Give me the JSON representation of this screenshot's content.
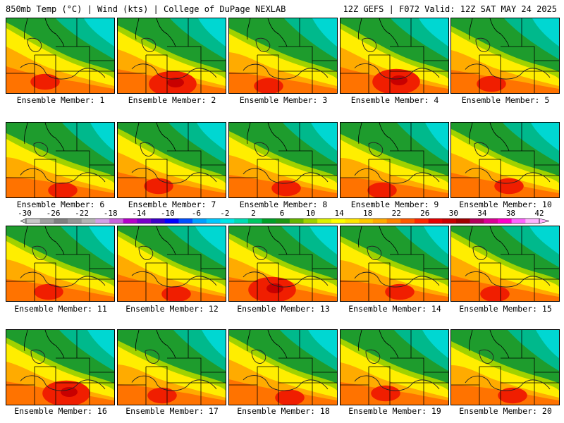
{
  "header": {
    "left": "850mb Temp (°C) | Wind (kts) | College of DuPage NEXLAB",
    "right": "12Z GEFS | F072 Valid: 12Z SAT MAY 24 2025"
  },
  "members": [
    {
      "label": "Ensemble Member: 1"
    },
    {
      "label": "Ensemble Member: 2"
    },
    {
      "label": "Ensemble Member: 3"
    },
    {
      "label": "Ensemble Member: 4"
    },
    {
      "label": "Ensemble Member: 5"
    },
    {
      "label": "Ensemble Member: 6"
    },
    {
      "label": "Ensemble Member: 7"
    },
    {
      "label": "Ensemble Member: 8"
    },
    {
      "label": "Ensemble Member: 9"
    },
    {
      "label": "Ensemble Member: 10"
    },
    {
      "label": "Ensemble Member: 11"
    },
    {
      "label": "Ensemble Member: 12"
    },
    {
      "label": "Ensemble Member: 13"
    },
    {
      "label": "Ensemble Member: 14"
    },
    {
      "label": "Ensemble Member: 15"
    },
    {
      "label": "Ensemble Member: 16"
    },
    {
      "label": "Ensemble Member: 17"
    },
    {
      "label": "Ensemble Member: 18"
    },
    {
      "label": "Ensemble Member: 19"
    },
    {
      "label": "Ensemble Member: 20"
    }
  ],
  "colorbar": {
    "ticks": [
      "-30",
      "-26",
      "-22",
      "-18",
      "-14",
      "-10",
      "-6",
      "-2",
      "2",
      "6",
      "10",
      "14",
      "18",
      "22",
      "26",
      "30",
      "34",
      "38",
      "42"
    ],
    "colors": [
      "#c8c8c8",
      "#a0a0a0",
      "#808080",
      "#969696",
      "#b4b4b4",
      "#d2a0e6",
      "#c864dc",
      "#b400c8",
      "#7800c8",
      "#3c00c8",
      "#0000ff",
      "#0050ff",
      "#00a0ff",
      "#00c8ff",
      "#00e6e6",
      "#00dcb4",
      "#00c864",
      "#00a028",
      "#1e9614",
      "#64b400",
      "#a0d200",
      "#dcf000",
      "#ffff00",
      "#ffe600",
      "#ffc800",
      "#ffaa00",
      "#ff8200",
      "#ff5a00",
      "#ff2800",
      "#e60000",
      "#c80000",
      "#a00000",
      "#b4005a",
      "#dc0096",
      "#ff00c8",
      "#ff64ff",
      "#ffb4ff"
    ]
  },
  "panel_colors": {
    "cyan": "#00d7d2",
    "teal": "#00b98c",
    "green": "#1e9c2d",
    "yellowgreen": "#a0d200",
    "yellow": "#ffee00",
    "orange": "#ffab00",
    "darkorange": "#ff7300",
    "red": "#f01e00",
    "darkred": "#c80000"
  }
}
